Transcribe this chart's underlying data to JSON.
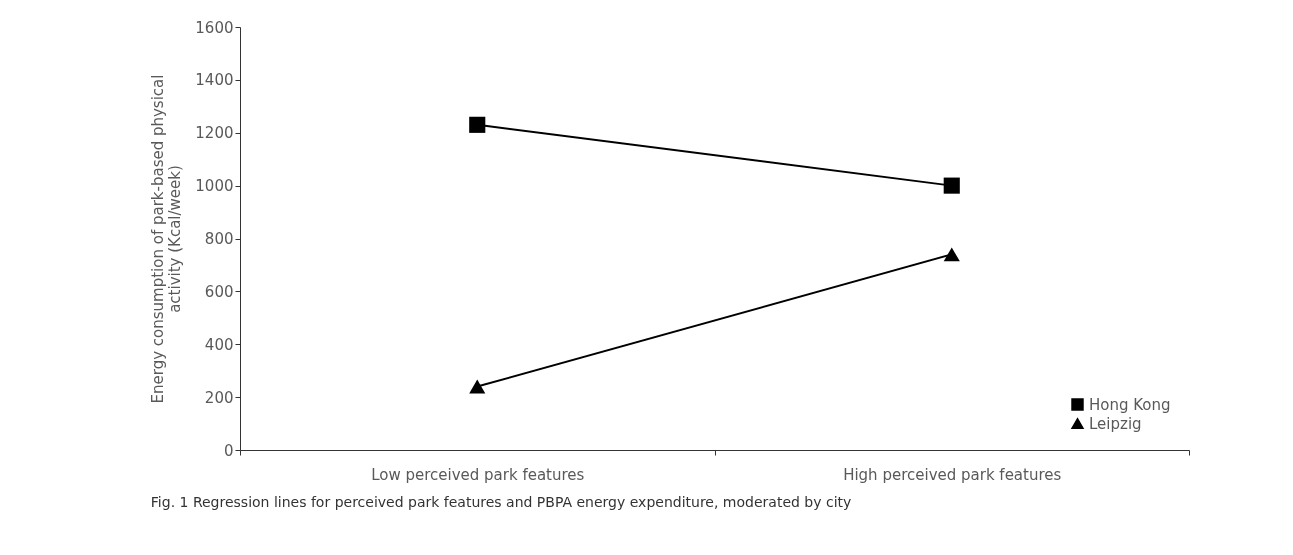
{
  "chart_data": {
    "type": "line",
    "categories": [
      "Low perceived park features",
      "High perceived park features"
    ],
    "ylabel": "Energy consumption of park-based physical activity (Kcal/week)",
    "ylim": [
      0,
      1600
    ],
    "yticks": [
      0,
      200,
      400,
      600,
      800,
      1000,
      1200,
      1400,
      1600
    ],
    "series": [
      {
        "name": "Hong Kong",
        "color": "#000000",
        "marker": "square",
        "values": [
          1230,
          1000
        ]
      },
      {
        "name": "Leipzig",
        "color": "#000000",
        "marker": "triangle",
        "values": [
          240,
          740
        ]
      }
    ],
    "legend": "bottom right",
    "grid": false,
    "annotations": [
      "Fig. 1 Regression lines for perceived park features and PBPA energy expenditure, moderated by city"
    ]
  }
}
